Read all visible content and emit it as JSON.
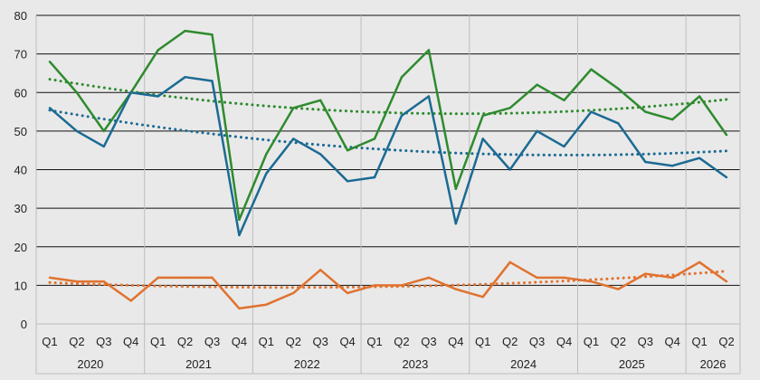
{
  "chart_data": {
    "type": "line",
    "title": "",
    "xlabel": "",
    "ylabel": "",
    "ylim": [
      0,
      80
    ],
    "y_ticks": [
      0,
      10,
      20,
      30,
      40,
      50,
      60,
      70,
      80
    ],
    "categories": [
      "Q1",
      "Q2",
      "Q3",
      "Q4",
      "Q1",
      "Q2",
      "Q3",
      "Q4",
      "Q1",
      "Q2",
      "Q3",
      "Q4",
      "Q1",
      "Q2",
      "Q3",
      "Q4",
      "Q1",
      "Q2",
      "Q3",
      "Q4",
      "Q1",
      "Q2",
      "Q3",
      "Q4",
      "Q1",
      "Q2"
    ],
    "year_groups": [
      {
        "label": "2020",
        "count": 4
      },
      {
        "label": "2021",
        "count": 4
      },
      {
        "label": "2022",
        "count": 4
      },
      {
        "label": "2023",
        "count": 4
      },
      {
        "label": "2024",
        "count": 4
      },
      {
        "label": "2025",
        "count": 4
      },
      {
        "label": "2026",
        "count": 2
      }
    ],
    "grid": true,
    "legend": "none",
    "series": [
      {
        "color": "#2e8b2e",
        "values": [
          68,
          60,
          50,
          60,
          71,
          76,
          75,
          27,
          44,
          56,
          58,
          45,
          48,
          64,
          71,
          35,
          54,
          56,
          62,
          58,
          66,
          61,
          55,
          53,
          59,
          49
        ],
        "trendline": "polynomial"
      },
      {
        "color": "#1b6a93",
        "values": [
          56,
          50,
          46,
          60,
          59,
          64,
          63,
          23,
          39,
          48,
          44,
          37,
          38,
          54,
          59,
          26,
          48,
          40,
          50,
          46,
          55,
          52,
          42,
          41,
          43,
          38
        ],
        "trendline": "polynomial"
      },
      {
        "color": "#e0722f",
        "values": [
          12,
          11,
          11,
          6,
          12,
          12,
          12,
          4,
          5,
          8,
          14,
          8,
          10,
          10,
          12,
          9,
          7,
          16,
          12,
          12,
          11,
          9,
          13,
          12,
          16,
          11
        ],
        "trendline": "polynomial"
      }
    ]
  }
}
